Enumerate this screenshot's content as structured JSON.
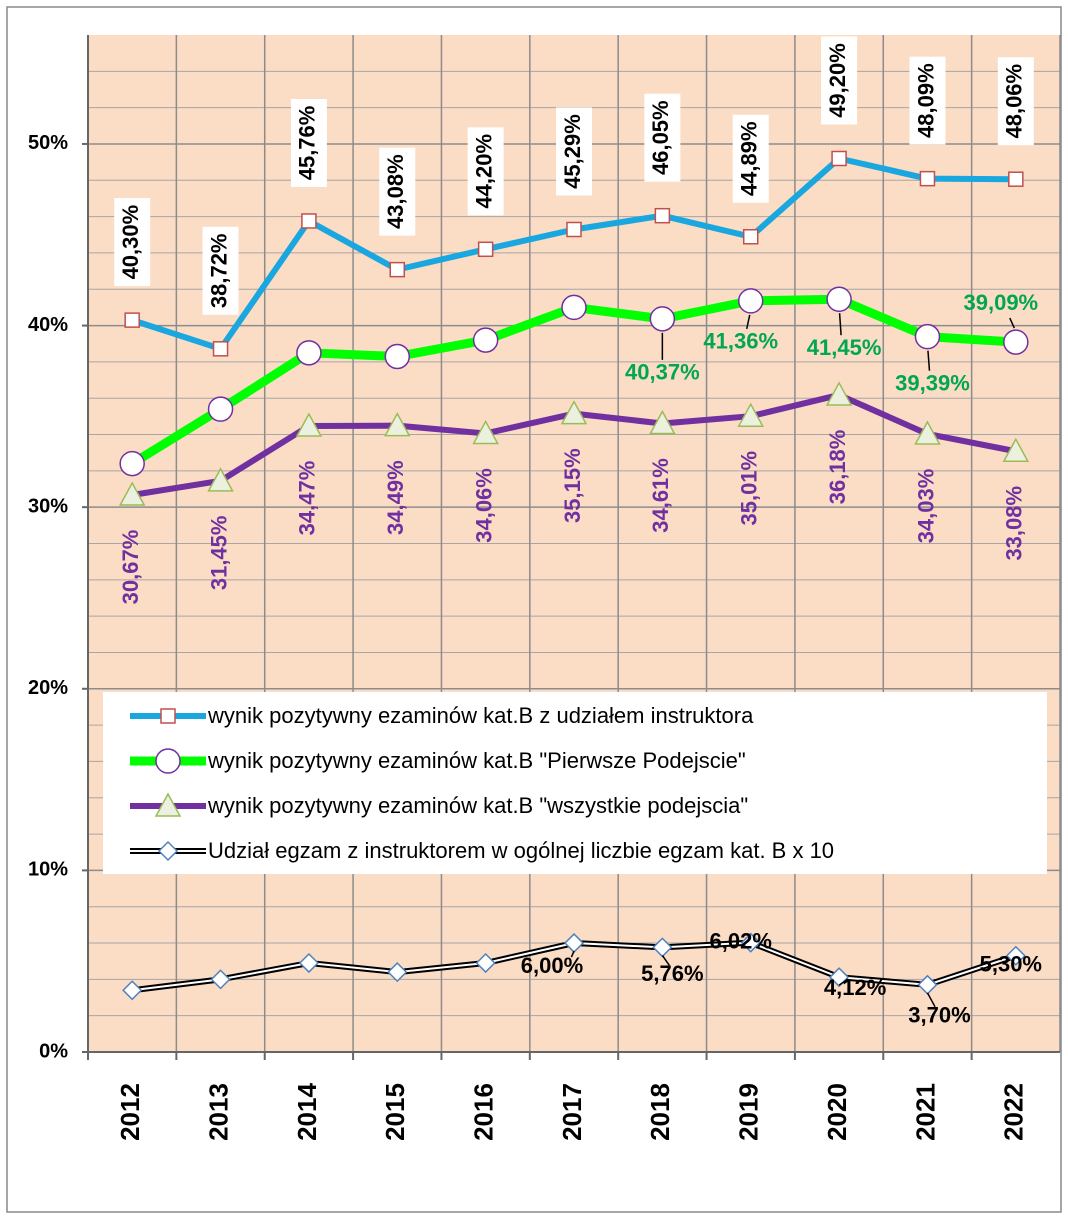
{
  "chart_data": {
    "type": "line",
    "categories": [
      "2012",
      "2013",
      "2014",
      "2015",
      "2016",
      "2017",
      "2018",
      "2019",
      "2020",
      "2021",
      "2022"
    ],
    "series": [
      {
        "name": "wynik pozytywny ezaminów  kat.B z udziałem instruktora",
        "color": "#1aa7e0",
        "marker_color": "#c0504d",
        "label_color": "#000000",
        "values": [
          40.3,
          38.72,
          45.76,
          43.08,
          44.2,
          45.29,
          46.05,
          44.89,
          49.2,
          48.09,
          48.06
        ],
        "value_labels": [
          "40,30%",
          "38,72%",
          "45,76%",
          "43,08%",
          "44,20%",
          "45,29%",
          "46,05%",
          "44,89%",
          "49,20%",
          "48,09%",
          "48,06%"
        ]
      },
      {
        "name": "wynik pozytywny ezaminów  kat.B \"Pierwsze Podejscie\"",
        "color": "#00ff00",
        "marker_color": "#7030a0",
        "label_color": "#00a651",
        "values": [
          32.4,
          35.4,
          38.5,
          38.3,
          39.2,
          41.0,
          40.37,
          41.36,
          41.45,
          39.39,
          39.09
        ],
        "value_labels": [
          null,
          null,
          null,
          null,
          null,
          null,
          "40,37%",
          "41,36%",
          "41,45%",
          "39,39%",
          "39,09%"
        ]
      },
      {
        "name": "wynik pozytywny ezaminów kat.B \"wszystkie podejscia\"",
        "color": "#7030a0",
        "marker_color": "#9bbb59",
        "label_color": "#7030a0",
        "values": [
          30.67,
          31.45,
          34.47,
          34.49,
          34.06,
          35.15,
          34.61,
          35.01,
          36.18,
          34.03,
          33.08
        ],
        "value_labels": [
          "30,67%",
          "31,45%",
          "34,47%",
          "34,49%",
          "34,06%",
          "35,15%",
          "34,61%",
          "35,01%",
          "36,18%",
          "34,03%",
          "33,08%"
        ]
      },
      {
        "name": "Udział egzam z instruktorem w ogólnej liczbie egzam kat. B x 10",
        "color": "#000000",
        "marker_color": "#4f81bd",
        "label_color": "#000000",
        "values": [
          3.4,
          4.0,
          4.9,
          4.4,
          4.9,
          6.0,
          5.76,
          6.02,
          4.12,
          3.7,
          5.3
        ],
        "value_labels": [
          null,
          null,
          null,
          null,
          null,
          "6,00%",
          "5,76%",
          "6,02%",
          "4,12%",
          "3,70%",
          "5,30%"
        ]
      }
    ],
    "ylim": [
      0,
      56
    ],
    "yticks": [
      {
        "value": 0,
        "label": "0%"
      },
      {
        "value": 10,
        "label": "10%"
      },
      {
        "value": 20,
        "label": "20%"
      },
      {
        "value": 30,
        "label": "30%"
      },
      {
        "value": 40,
        "label": "40%"
      },
      {
        "value": 50,
        "label": "50%"
      }
    ],
    "minor_grid": [
      2,
      4,
      6,
      8,
      12,
      14,
      16,
      18,
      22,
      24,
      26,
      28,
      32,
      34,
      36,
      38,
      42,
      44,
      46,
      48,
      52,
      54
    ],
    "grid": true,
    "plot_background": "#fbdcc5"
  }
}
